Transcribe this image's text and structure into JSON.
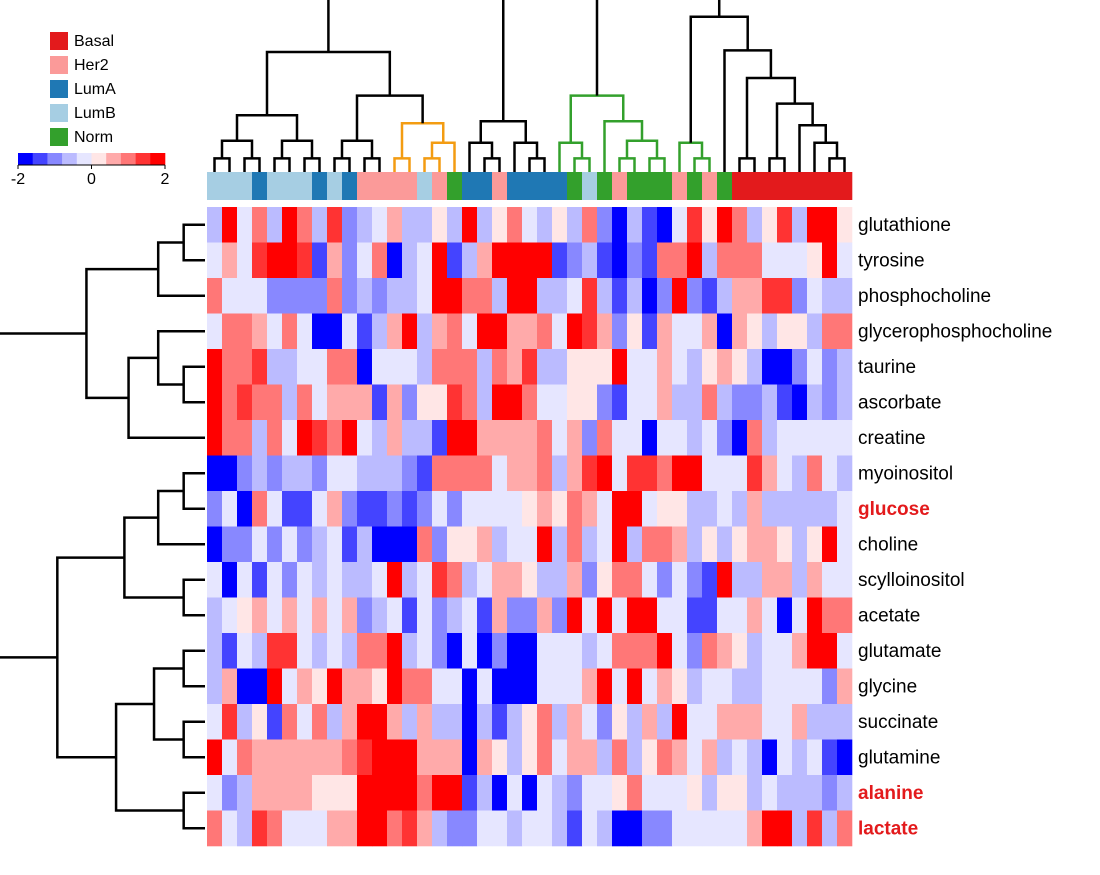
{
  "chart_data": {
    "type": "heatmap",
    "title": "",
    "xlabel": "",
    "ylabel": "",
    "rows": [
      "glutathione",
      "tyrosine",
      "phosphocholine",
      "glycerophosphocholine",
      "taurine",
      "ascorbate",
      "creatine",
      "myoinositol",
      "glucose",
      "choline",
      "scylloinositol",
      "acetate",
      "glutamate",
      "glycine",
      "succinate",
      "glutamine",
      "alanine",
      "lactate"
    ],
    "highlighted_rows": [
      "glucose",
      "alanine",
      "lactate"
    ],
    "columns": 43,
    "column_groups": [
      "LumB",
      "LumB",
      "LumB",
      "LumA",
      "LumB",
      "LumB",
      "LumB",
      "LumA",
      "LumB",
      "LumA",
      "Her2",
      "Her2",
      "Her2",
      "Her2",
      "LumB",
      "Her2",
      "Norm",
      "LumA",
      "LumA",
      "Her2",
      "LumA",
      "LumA",
      "LumA",
      "LumA",
      "Norm",
      "LumB",
      "Norm",
      "Her2",
      "Norm",
      "Norm",
      "Norm",
      "Her2",
      "Norm",
      "Her2",
      "Norm",
      "Basal",
      "Basal",
      "Basal",
      "Basal",
      "Basal",
      "Basal",
      "Basal",
      "Basal"
    ],
    "legend": {
      "position": "top-left",
      "entries": [
        {
          "label": "Basal",
          "color": "#e31a1c"
        },
        {
          "label": "Her2",
          "color": "#fb9a99"
        },
        {
          "label": "LumA",
          "color": "#1f78b4"
        },
        {
          "label": "LumB",
          "color": "#a6cee3"
        },
        {
          "label": "Norm",
          "color": "#33a02c"
        }
      ]
    },
    "color_scale": {
      "min": -2,
      "max": 2,
      "ticks": [
        "-2",
        "0",
        "2"
      ],
      "colors": [
        "#0000ff",
        "#4444ff",
        "#8888ff",
        "#bbbbff",
        "#e6e6ff",
        "#ffe6e6",
        "#ffaaaa",
        "#ff7777",
        "#ff3333",
        "#ff0000"
      ]
    },
    "values": [
      [
        -0.8,
        2.0,
        -0.2,
        1.0,
        -0.8,
        1.7,
        0.8,
        -0.8,
        1.3,
        -1.1,
        -0.5,
        -0.4,
        0.5,
        -0.5,
        -0.8,
        0.2,
        -0.8,
        1.6,
        -0.6,
        0.3,
        0.8,
        -0.2,
        -0.7,
        0.2,
        -0.5,
        0.8,
        -0.9,
        -2.0,
        -0.8,
        -1.4,
        -1.7,
        -0.4,
        1.5,
        0.2,
        1.8,
        1.1,
        -0.6,
        0.3,
        1.5,
        -0.6,
        1.7,
        2.0,
        0.2
      ],
      [
        -0.2,
        0.5,
        -0.2,
        1.3,
        1.6,
        1.9,
        1.5,
        -1.4,
        0.5,
        -1.2,
        -0.2,
        1.0,
        -2.0,
        -0.5,
        -0.1,
        1.7,
        -1.4,
        -0.6,
        0.5,
        1.6,
        1.8,
        2.0,
        1.7,
        -1.5,
        -1.0,
        -0.8,
        -1.4,
        -1.6,
        -1.0,
        -1.3,
        0.9,
        1.0,
        1.6,
        -0.8,
        1.0,
        1.0,
        1.1,
        -0.2,
        -0.2,
        -0.3,
        0.2,
        2.0,
        -0.2
      ],
      [
        1.0,
        -0.2,
        -0.2,
        -0.2,
        -0.9,
        -0.9,
        -0.9,
        -0.9,
        1.0,
        -1.2,
        -0.8,
        -1.2,
        -0.8,
        -0.8,
        -0.4,
        1.8,
        1.6,
        0.8,
        1.1,
        -0.8,
        1.8,
        1.7,
        -0.8,
        -0.7,
        -0.2,
        1.2,
        -0.6,
        -1.3,
        -0.8,
        -1.6,
        -1.0,
        1.7,
        -0.9,
        -1.4,
        -0.7,
        0.6,
        0.6,
        1.4,
        1.4,
        -1.2,
        -0.4,
        -0.6,
        -0.5
      ],
      [
        -0.3,
        0.8,
        0.9,
        0.5,
        -0.3,
        0.8,
        -0.1,
        -1.6,
        -1.7,
        -0.4,
        -1.3,
        -0.8,
        0.5,
        1.6,
        -0.5,
        0.4,
        1.0,
        -0.2,
        2.0,
        2.0,
        0.7,
        0.5,
        1.1,
        -0.4,
        1.8,
        1.2,
        0.4,
        -1.2,
        0.3,
        -1.5,
        0.5,
        -0.3,
        -0.1,
        0.5,
        -1.7,
        0.4,
        0.3,
        -0.5,
        0.3,
        0.1,
        -0.5,
        0.9,
        0.9
      ],
      [
        2.0,
        0.9,
        0.9,
        1.3,
        -0.8,
        -0.8,
        -0.2,
        -0.2,
        0.8,
        1.0,
        -1.6,
        -0.3,
        -0.3,
        -0.2,
        -0.8,
        0.8,
        0.8,
        0.8,
        -0.6,
        1.0,
        0.7,
        1.3,
        -0.8,
        -0.6,
        0.3,
        0.3,
        0.2,
        1.8,
        -0.2,
        -0.2,
        0.4,
        -0.1,
        -0.8,
        0.2,
        0.7,
        0.1,
        -0.5,
        -1.8,
        -1.8,
        -1.0,
        -0.2,
        -1.0,
        -0.5
      ],
      [
        2.0,
        0.9,
        1.2,
        0.9,
        1.1,
        -0.8,
        0.9,
        -0.2,
        0.4,
        0.4,
        0.4,
        -1.3,
        0.4,
        -0.9,
        0.3,
        0.3,
        1.2,
        1.1,
        -0.8,
        1.8,
        1.8,
        0.9,
        -0.2,
        -0.2,
        0.3,
        0.3,
        -1.0,
        -1.3,
        -0.4,
        -0.4,
        0.4,
        -0.7,
        -0.7,
        1.0,
        -0.8,
        -1.0,
        -1.0,
        -0.8,
        -1.4,
        -1.8,
        -0.7,
        -1.1,
        -0.8
      ],
      [
        2.0,
        0.9,
        0.9,
        -0.5,
        0.9,
        -0.4,
        1.6,
        1.4,
        1.0,
        1.7,
        -0.2,
        -0.8,
        0.7,
        -0.6,
        -0.8,
        -1.4,
        1.8,
        1.8,
        0.7,
        0.7,
        0.7,
        0.7,
        0.8,
        -0.3,
        0.4,
        -0.9,
        0.9,
        -0.3,
        -0.3,
        -1.7,
        -0.3,
        -0.1,
        -0.6,
        -0.3,
        -1.1,
        -1.7,
        0.8,
        -0.5,
        -0.4,
        -0.4,
        -0.4,
        -0.4,
        -0.4
      ],
      [
        -1.8,
        -1.8,
        -0.9,
        -0.5,
        -1.1,
        -0.8,
        -0.8,
        -1.0,
        -0.2,
        -0.4,
        -0.5,
        -0.8,
        -0.8,
        -1.1,
        -1.3,
        0.9,
        0.9,
        0.9,
        0.9,
        -0.4,
        0.7,
        0.7,
        0.9,
        -0.6,
        0.4,
        1.2,
        1.8,
        -0.2,
        1.4,
        1.4,
        0.9,
        1.8,
        1.8,
        -0.4,
        -0.4,
        -0.1,
        1.3,
        0.5,
        -0.4,
        -0.6,
        1.0,
        -0.3,
        -0.5
      ],
      [
        -0.9,
        -0.2,
        -1.8,
        0.9,
        -0.4,
        -1.4,
        -1.4,
        -0.3,
        0.5,
        -0.9,
        -1.3,
        -1.4,
        -1.0,
        -1.3,
        -1.1,
        -0.4,
        -0.9,
        -0.3,
        -0.1,
        -0.3,
        -0.4,
        0.3,
        0.7,
        0.3,
        0.9,
        0.7,
        -0.1,
        2.0,
        1.8,
        -0.1,
        0.3,
        0.1,
        -0.7,
        -0.6,
        -0.2,
        -0.8,
        0.5,
        -0.7,
        -0.7,
        -0.7,
        -0.7,
        -0.6,
        -0.4
      ],
      [
        -1.8,
        -0.9,
        -0.9,
        -0.4,
        -0.9,
        -0.4,
        -0.9,
        -0.8,
        -0.2,
        -1.3,
        -0.5,
        -1.6,
        -1.9,
        -1.9,
        0.8,
        -1.0,
        0.3,
        0.3,
        0.4,
        -0.5,
        -0.1,
        -0.1,
        1.7,
        -0.6,
        0.9,
        -0.8,
        -0.4,
        1.8,
        -0.5,
        0.9,
        0.8,
        0.7,
        -0.5,
        0.3,
        -0.7,
        0.3,
        0.7,
        0.7,
        0.1,
        -0.8,
        0.2,
        2.0,
        -0.4
      ],
      [
        -0.3,
        -1.7,
        -0.3,
        -1.3,
        -0.4,
        -1.2,
        -0.3,
        -0.8,
        -0.3,
        -0.8,
        -0.8,
        -0.4,
        1.8,
        -0.8,
        -0.3,
        1.3,
        1.0,
        -0.7,
        -0.2,
        0.6,
        0.6,
        0.3,
        -0.6,
        -0.8,
        0.7,
        -0.9,
        0.3,
        0.8,
        0.8,
        -0.2,
        -0.9,
        -0.4,
        -0.9,
        -1.5,
        1.7,
        -0.6,
        -0.6,
        0.7,
        0.7,
        -0.5,
        0.4,
        -0.3,
        -0.3
      ],
      [
        -0.8,
        -0.2,
        0.3,
        0.7,
        -0.2,
        0.7,
        -0.3,
        0.7,
        -0.3,
        0.7,
        -0.9,
        -0.5,
        -0.3,
        -1.4,
        -0.3,
        -1.1,
        -0.7,
        -0.2,
        -1.3,
        0.7,
        -0.9,
        -0.9,
        0.7,
        -1.1,
        2.0,
        -0.4,
        1.8,
        -0.3,
        1.8,
        1.8,
        -0.2,
        -0.1,
        -1.4,
        -1.4,
        -0.4,
        -0.4,
        0.7,
        -0.3,
        -1.7,
        -0.4,
        2.0,
        0.8,
        0.8
      ],
      [
        -0.8,
        -1.3,
        -0.3,
        -0.8,
        1.5,
        1.4,
        -0.2,
        -0.8,
        -0.3,
        -0.8,
        0.9,
        0.9,
        1.6,
        -0.8,
        -0.4,
        -1.2,
        -1.8,
        -0.4,
        -1.8,
        -1.2,
        -1.6,
        -1.6,
        -0.4,
        -0.4,
        -0.3,
        -0.5,
        -0.2,
        0.9,
        0.9,
        0.9,
        1.8,
        -0.1,
        -1.0,
        0.8,
        0.5,
        0.3,
        -0.6,
        -0.3,
        -0.3,
        0.4,
        1.7,
        1.7,
        -0.4
      ],
      [
        -0.6,
        0.4,
        -1.6,
        -1.8,
        1.8,
        -0.3,
        0.5,
        0.3,
        1.6,
        0.6,
        0.6,
        0.3,
        1.6,
        0.9,
        0.9,
        -0.4,
        -0.4,
        -1.8,
        -0.3,
        -1.8,
        -1.8,
        -1.8,
        -0.4,
        -0.4,
        -0.4,
        0.4,
        1.8,
        -0.3,
        1.8,
        -0.3,
        0.4,
        0.3,
        -0.6,
        -0.3,
        -0.3,
        -0.6,
        -0.6,
        -0.1,
        -0.4,
        -0.4,
        -0.4,
        -0.9,
        0.4
      ],
      [
        -0.4,
        1.3,
        -0.6,
        0.3,
        -1.3,
        0.9,
        -0.3,
        0.9,
        -0.6,
        0.4,
        1.6,
        1.8,
        0.7,
        -0.7,
        0.4,
        -0.7,
        -0.7,
        -1.7,
        -0.8,
        -1.4,
        -0.8,
        0.3,
        1.0,
        -0.5,
        0.5,
        -0.3,
        -0.9,
        0.3,
        -0.6,
        0.7,
        -0.6,
        1.8,
        -0.4,
        -0.3,
        0.4,
        0.4,
        0.6,
        -0.4,
        -0.4,
        0.4,
        -0.5,
        -0.6,
        -0.5
      ],
      [
        2.0,
        -0.4,
        1.0,
        0.4,
        0.7,
        0.7,
        0.7,
        0.7,
        0.4,
        0.9,
        1.3,
        1.8,
        1.8,
        1.8,
        0.4,
        0.7,
        0.7,
        -1.7,
        0.6,
        0.3,
        -0.7,
        0.3,
        0.9,
        -0.2,
        0.7,
        0.7,
        -0.5,
        0.9,
        -0.7,
        0.3,
        1.0,
        0.5,
        -0.4,
        0.7,
        -0.5,
        -0.4,
        -0.7,
        -1.6,
        -0.4,
        -0.8,
        -0.4,
        -1.3,
        -1.8
      ],
      [
        -0.2,
        -1.2,
        -0.5,
        0.4,
        0.7,
        0.7,
        0.5,
        0.3,
        0.3,
        0.3,
        1.8,
        1.8,
        1.8,
        1.8,
        0.8,
        1.8,
        1.8,
        -1.3,
        -0.6,
        -1.7,
        -0.4,
        -1.8,
        -0.3,
        -0.5,
        -0.9,
        -0.2,
        -0.4,
        0.3,
        0.9,
        -0.3,
        -0.2,
        -0.1,
        0.3,
        -0.5,
        0.3,
        0.3,
        -0.6,
        -0.4,
        -0.8,
        -0.6,
        -0.7,
        -1.2,
        -0.8
      ],
      [
        0.8,
        -0.4,
        -0.5,
        1.3,
        0.8,
        -0.3,
        -0.3,
        -0.3,
        0.5,
        0.5,
        1.8,
        1.8,
        1.0,
        1.3,
        0.4,
        -0.6,
        -1.2,
        -1.2,
        -0.3,
        -0.3,
        -0.8,
        -0.3,
        -0.3,
        -0.8,
        -1.4,
        -0.3,
        -0.8,
        -2.0,
        -1.6,
        -0.9,
        -1.0,
        -0.1,
        -0.4,
        -0.4,
        -0.3,
        -0.3,
        0.6,
        1.8,
        1.8,
        -0.5,
        1.3,
        -0.7,
        0.8
      ]
    ]
  }
}
